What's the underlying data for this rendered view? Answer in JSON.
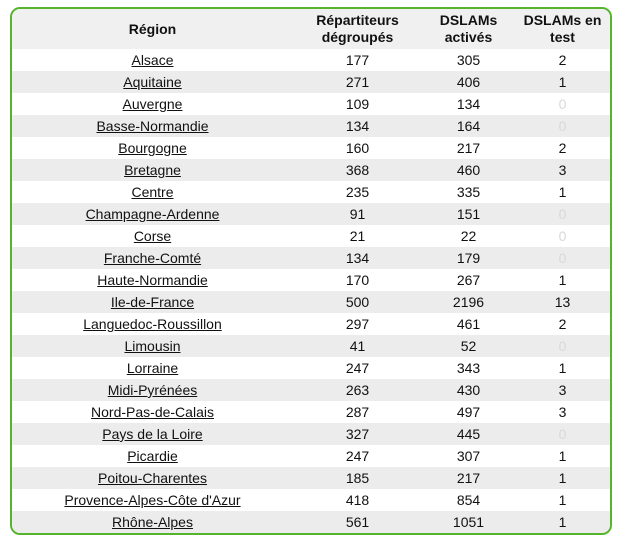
{
  "colors": {
    "border_green": "#56b42c",
    "header_bg": "#f0f0f0",
    "row_stripe": "#ececec",
    "zero_value_text": "#d8d8d8",
    "text": "#111111"
  },
  "table": {
    "columns": {
      "region": "Région",
      "repartiteurs": "Répartiteurs dégroupés",
      "dslams_actives": "DSLAMs activés",
      "dslams_test": "DSLAMs en test"
    },
    "rows": [
      {
        "region": "Alsace",
        "repartiteurs": "177",
        "dslams_actives": "305",
        "dslams_test": "2"
      },
      {
        "region": "Aquitaine",
        "repartiteurs": "271",
        "dslams_actives": "406",
        "dslams_test": "1"
      },
      {
        "region": "Auvergne",
        "repartiteurs": "109",
        "dslams_actives": "134",
        "dslams_test": "0"
      },
      {
        "region": "Basse-Normandie",
        "repartiteurs": "134",
        "dslams_actives": "164",
        "dslams_test": "0"
      },
      {
        "region": "Bourgogne",
        "repartiteurs": "160",
        "dslams_actives": "217",
        "dslams_test": "2"
      },
      {
        "region": "Bretagne",
        "repartiteurs": "368",
        "dslams_actives": "460",
        "dslams_test": "3"
      },
      {
        "region": "Centre",
        "repartiteurs": "235",
        "dslams_actives": "335",
        "dslams_test": "1"
      },
      {
        "region": "Champagne-Ardenne",
        "repartiteurs": "91",
        "dslams_actives": "151",
        "dslams_test": "0"
      },
      {
        "region": "Corse",
        "repartiteurs": "21",
        "dslams_actives": "22",
        "dslams_test": "0"
      },
      {
        "region": "Franche-Comté",
        "repartiteurs": "134",
        "dslams_actives": "179",
        "dslams_test": "0"
      },
      {
        "region": "Haute-Normandie",
        "repartiteurs": "170",
        "dslams_actives": "267",
        "dslams_test": "1"
      },
      {
        "region": "Ile-de-France",
        "repartiteurs": "500",
        "dslams_actives": "2196",
        "dslams_test": "13"
      },
      {
        "region": "Languedoc-Roussillon",
        "repartiteurs": "297",
        "dslams_actives": "461",
        "dslams_test": "2"
      },
      {
        "region": "Limousin",
        "repartiteurs": "41",
        "dslams_actives": "52",
        "dslams_test": "0"
      },
      {
        "region": "Lorraine",
        "repartiteurs": "247",
        "dslams_actives": "343",
        "dslams_test": "1"
      },
      {
        "region": "Midi-Pyrénées",
        "repartiteurs": "263",
        "dslams_actives": "430",
        "dslams_test": "3"
      },
      {
        "region": "Nord-Pas-de-Calais",
        "repartiteurs": "287",
        "dslams_actives": "497",
        "dslams_test": "3"
      },
      {
        "region": "Pays de la Loire",
        "repartiteurs": "327",
        "dslams_actives": "445",
        "dslams_test": "0"
      },
      {
        "region": "Picardie",
        "repartiteurs": "247",
        "dslams_actives": "307",
        "dslams_test": "1"
      },
      {
        "region": "Poitou-Charentes",
        "repartiteurs": "185",
        "dslams_actives": "217",
        "dslams_test": "1"
      },
      {
        "region": "Provence-Alpes-Côte d'Azur",
        "repartiteurs": "418",
        "dslams_actives": "854",
        "dslams_test": "1"
      },
      {
        "region": "Rhône-Alpes",
        "repartiteurs": "561",
        "dslams_actives": "1051",
        "dslams_test": "1"
      }
    ]
  },
  "chart_data": {
    "type": "table",
    "title": "",
    "columns": [
      "Région",
      "Répartiteurs dégroupés",
      "DSLAMs activés",
      "DSLAMs en test"
    ],
    "rows": [
      [
        "Alsace",
        177,
        305,
        2
      ],
      [
        "Aquitaine",
        271,
        406,
        1
      ],
      [
        "Auvergne",
        109,
        134,
        0
      ],
      [
        "Basse-Normandie",
        134,
        164,
        0
      ],
      [
        "Bourgogne",
        160,
        217,
        2
      ],
      [
        "Bretagne",
        368,
        460,
        3
      ],
      [
        "Centre",
        235,
        335,
        1
      ],
      [
        "Champagne-Ardenne",
        91,
        151,
        0
      ],
      [
        "Corse",
        21,
        22,
        0
      ],
      [
        "Franche-Comté",
        134,
        179,
        0
      ],
      [
        "Haute-Normandie",
        170,
        267,
        1
      ],
      [
        "Ile-de-France",
        500,
        2196,
        13
      ],
      [
        "Languedoc-Roussillon",
        297,
        461,
        2
      ],
      [
        "Limousin",
        41,
        52,
        0
      ],
      [
        "Lorraine",
        247,
        343,
        1
      ],
      [
        "Midi-Pyrénées",
        263,
        430,
        3
      ],
      [
        "Nord-Pas-de-Calais",
        287,
        497,
        3
      ],
      [
        "Pays de la Loire",
        327,
        445,
        0
      ],
      [
        "Picardie",
        247,
        307,
        1
      ],
      [
        "Poitou-Charentes",
        185,
        217,
        1
      ],
      [
        "Provence-Alpes-Côte d'Azur",
        418,
        854,
        1
      ],
      [
        "Rhône-Alpes",
        561,
        1051,
        1
      ]
    ]
  }
}
